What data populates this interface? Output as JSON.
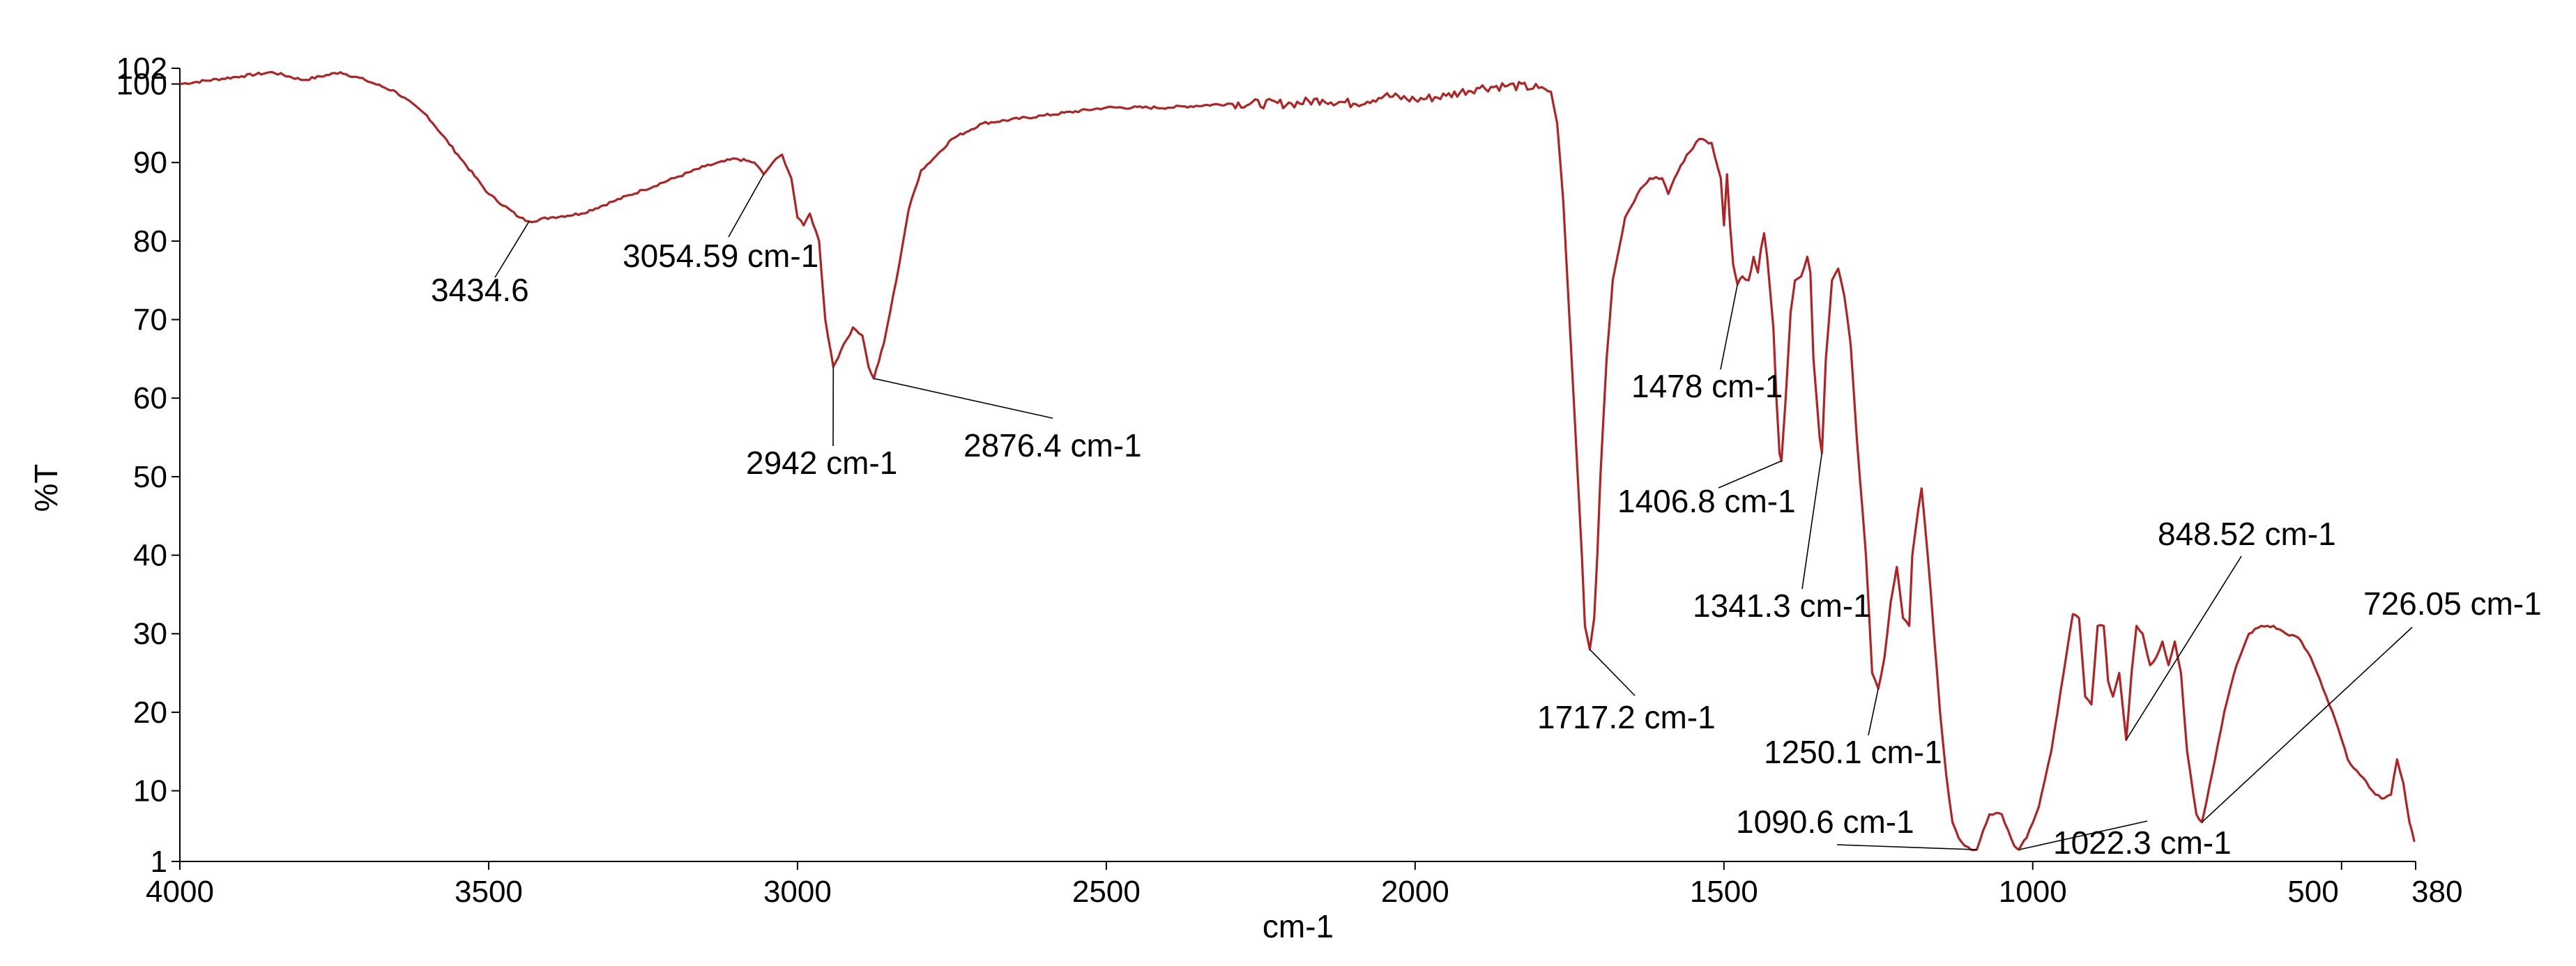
{
  "chart_data": {
    "type": "line",
    "title": "",
    "xlabel": "cm-1",
    "ylabel": "%T",
    "xlim": [
      4000,
      380
    ],
    "ylim": [
      1,
      102
    ],
    "x_reversed": true,
    "grid": false,
    "line_color": "#b22222",
    "x_ticks": [
      4000,
      3500,
      3000,
      2500,
      2000,
      1500,
      1000,
      500,
      380
    ],
    "x_tick_labels": [
      "4000",
      "3500",
      "3000",
      "2500",
      "2000",
      "1500",
      "1000",
      "500",
      "380"
    ],
    "y_ticks": [
      1,
      10,
      20,
      30,
      40,
      50,
      60,
      70,
      80,
      90,
      100,
      102
    ],
    "y_tick_labels": [
      "1",
      "10",
      "20",
      "30",
      "40",
      "50",
      "60",
      "70",
      "80",
      "90",
      "100",
      "102"
    ],
    "series": [
      {
        "points": [
          [
            4000,
            100
          ],
          [
            3900,
            101
          ],
          [
            3850,
            101.5
          ],
          [
            3800,
            100.5
          ],
          [
            3740,
            101.5
          ],
          [
            3700,
            100.5
          ],
          [
            3650,
            99
          ],
          [
            3600,
            96
          ],
          [
            3550,
            91
          ],
          [
            3500,
            86
          ],
          [
            3450,
            83
          ],
          [
            3434.6,
            82.5
          ],
          [
            3400,
            83
          ],
          [
            3350,
            83.5
          ],
          [
            3300,
            85
          ],
          [
            3250,
            86.5
          ],
          [
            3200,
            88
          ],
          [
            3150,
            89.5
          ],
          [
            3100,
            90.5
          ],
          [
            3070,
            90
          ],
          [
            3054.59,
            88.5
          ],
          [
            3040,
            90
          ],
          [
            3025,
            91
          ],
          [
            3010,
            88
          ],
          [
            3000,
            83
          ],
          [
            2990,
            82
          ],
          [
            2980,
            83.5
          ],
          [
            2965,
            80
          ],
          [
            2955,
            70
          ],
          [
            2942,
            64
          ],
          [
            2930,
            66
          ],
          [
            2910,
            69
          ],
          [
            2895,
            68
          ],
          [
            2885,
            64
          ],
          [
            2876.4,
            62.5
          ],
          [
            2860,
            67
          ],
          [
            2840,
            75
          ],
          [
            2820,
            84
          ],
          [
            2800,
            89
          ],
          [
            2780,
            90.5
          ],
          [
            2750,
            93
          ],
          [
            2700,
            95
          ],
          [
            2600,
            96
          ],
          [
            2500,
            97
          ],
          [
            2400,
            97
          ],
          [
            2300,
            97.5
          ],
          [
            2200,
            97.5
          ],
          [
            2150,
            98
          ],
          [
            2100,
            97.5
          ],
          [
            2050,
            98.5
          ],
          [
            2000,
            98
          ],
          [
            1950,
            98.5
          ],
          [
            1900,
            99.5
          ],
          [
            1850,
            99.8
          ],
          [
            1800,
            99.5
          ],
          [
            1780,
            99
          ],
          [
            1770,
            95
          ],
          [
            1760,
            85
          ],
          [
            1750,
            70
          ],
          [
            1740,
            55
          ],
          [
            1730,
            40
          ],
          [
            1725,
            31
          ],
          [
            1717.2,
            28
          ],
          [
            1710,
            32
          ],
          [
            1705,
            40
          ],
          [
            1700,
            50
          ],
          [
            1690,
            65
          ],
          [
            1680,
            75
          ],
          [
            1660,
            83
          ],
          [
            1640,
            86
          ],
          [
            1620,
            88
          ],
          [
            1600,
            88
          ],
          [
            1590,
            86
          ],
          [
            1580,
            88
          ],
          [
            1560,
            91
          ],
          [
            1540,
            93
          ],
          [
            1520,
            92.5
          ],
          [
            1505,
            88
          ],
          [
            1500,
            82
          ],
          [
            1495,
            88.5
          ],
          [
            1490,
            82
          ],
          [
            1485,
            77
          ],
          [
            1478,
            74.5
          ],
          [
            1470,
            75.5
          ],
          [
            1460,
            75
          ],
          [
            1452,
            78
          ],
          [
            1445,
            76
          ],
          [
            1440,
            79
          ],
          [
            1435,
            81
          ],
          [
            1430,
            78
          ],
          [
            1420,
            69
          ],
          [
            1415,
            60
          ],
          [
            1410,
            53
          ],
          [
            1406.8,
            52
          ],
          [
            1400,
            60
          ],
          [
            1392,
            71
          ],
          [
            1385,
            75
          ],
          [
            1375,
            75.5
          ],
          [
            1365,
            78
          ],
          [
            1360,
            76
          ],
          [
            1355,
            65
          ],
          [
            1345,
            55
          ],
          [
            1341.3,
            53
          ],
          [
            1335,
            65
          ],
          [
            1325,
            75
          ],
          [
            1315,
            76.5
          ],
          [
            1305,
            73
          ],
          [
            1295,
            67
          ],
          [
            1285,
            55
          ],
          [
            1270,
            40
          ],
          [
            1260,
            25
          ],
          [
            1250.1,
            23
          ],
          [
            1240,
            27
          ],
          [
            1230,
            34
          ],
          [
            1220,
            38.5
          ],
          [
            1210,
            32
          ],
          [
            1200,
            31
          ],
          [
            1195,
            40
          ],
          [
            1185,
            46
          ],
          [
            1180,
            48.5
          ],
          [
            1170,
            40
          ],
          [
            1160,
            30
          ],
          [
            1150,
            20
          ],
          [
            1140,
            12
          ],
          [
            1130,
            6
          ],
          [
            1120,
            4
          ],
          [
            1110,
            3
          ],
          [
            1100,
            2.5
          ],
          [
            1090.6,
            2.5
          ],
          [
            1080,
            5
          ],
          [
            1070,
            7
          ],
          [
            1050,
            7
          ],
          [
            1040,
            5
          ],
          [
            1030,
            3
          ],
          [
            1022.3,
            2.5
          ],
          [
            1010,
            4
          ],
          [
            990,
            8
          ],
          [
            970,
            15
          ],
          [
            950,
            25
          ],
          [
            935,
            32.5
          ],
          [
            925,
            32
          ],
          [
            915,
            22
          ],
          [
            905,
            21
          ],
          [
            895,
            31
          ],
          [
            885,
            31
          ],
          [
            878,
            24
          ],
          [
            870,
            22
          ],
          [
            860,
            25
          ],
          [
            848.52,
            16.5
          ],
          [
            840,
            25
          ],
          [
            832,
            31
          ],
          [
            822,
            30
          ],
          [
            810,
            26
          ],
          [
            800,
            27
          ],
          [
            790,
            29
          ],
          [
            780,
            26
          ],
          [
            770,
            29
          ],
          [
            760,
            25
          ],
          [
            750,
            15
          ],
          [
            735,
            7
          ],
          [
            726.05,
            6
          ],
          [
            710,
            12
          ],
          [
            690,
            20
          ],
          [
            670,
            26
          ],
          [
            650,
            30
          ],
          [
            630,
            31
          ],
          [
            610,
            31
          ],
          [
            590,
            30
          ],
          [
            570,
            29.5
          ],
          [
            550,
            27
          ],
          [
            530,
            23
          ],
          [
            510,
            19
          ],
          [
            490,
            14
          ],
          [
            470,
            12
          ],
          [
            450,
            10
          ],
          [
            435,
            9
          ],
          [
            420,
            9.5
          ],
          [
            410,
            14
          ],
          [
            400,
            11
          ],
          [
            390,
            6
          ],
          [
            382,
            3.5
          ]
        ]
      }
    ],
    "annotations": [
      {
        "text": "3434.6",
        "x": 3434.6,
        "y": 82.5
      },
      {
        "text": "3054.59 cm-1",
        "x": 3054.59,
        "y": 88.5
      },
      {
        "text": "2942 cm-1",
        "x": 2942,
        "y": 64
      },
      {
        "text": "2876.4 cm-1",
        "x": 2876.4,
        "y": 62.5
      },
      {
        "text": "1717.2  cm-1",
        "x": 1717.2,
        "y": 28
      },
      {
        "text": "1478  cm-1",
        "x": 1478,
        "y": 74.5
      },
      {
        "text": "1406.8  cm-1",
        "x": 1406.8,
        "y": 52
      },
      {
        "text": "1341.3  cm-1",
        "x": 1341.3,
        "y": 53
      },
      {
        "text": "1250.1  cm-1",
        "x": 1250.1,
        "y": 23
      },
      {
        "text": "1090.6  cm-1",
        "x": 1090.6,
        "y": 2.5
      },
      {
        "text": "1022.3  cm-1",
        "x": 1022.3,
        "y": 2.5
      },
      {
        "text": "848.52  cm-1",
        "x": 848.52,
        "y": 16.5
      },
      {
        "text": "726.05  cm-1",
        "x": 726.05,
        "y": 6
      }
    ]
  }
}
